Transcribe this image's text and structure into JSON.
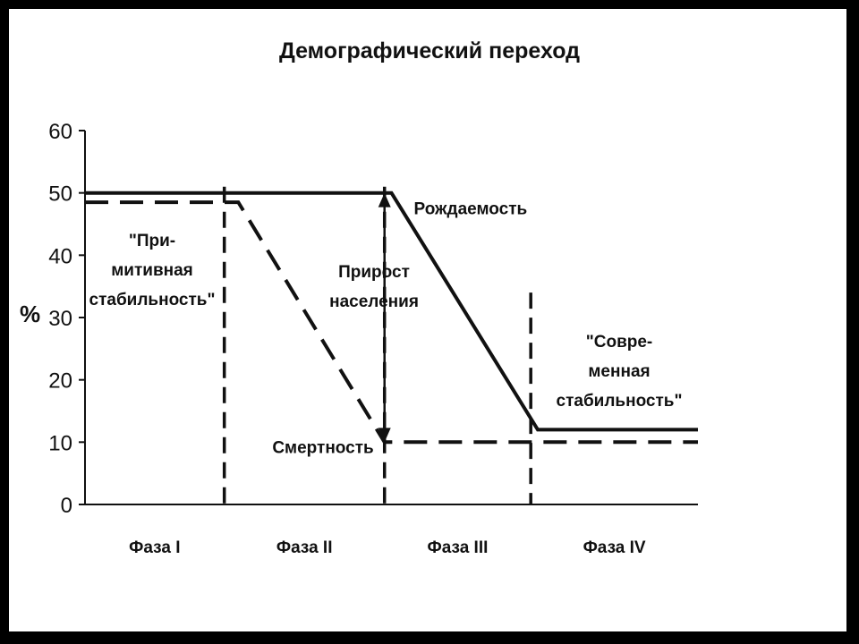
{
  "chart_data": {
    "type": "line",
    "title": "Демографический переход",
    "ylabel": "%",
    "xlabel": "",
    "ylim": [
      0,
      60
    ],
    "yticks": [
      "0",
      "10",
      "20",
      "30",
      "40",
      "50",
      "60"
    ],
    "xlim": [
      0,
      4.4
    ],
    "phases": [
      "Фаза I",
      "Фаза II",
      "Фаза III",
      "Фаза IV"
    ],
    "phase_boundaries": [
      1,
      2.15,
      3.2
    ],
    "series": [
      {
        "name": "Рождаемость",
        "style": "solid",
        "points": [
          [
            0,
            50
          ],
          [
            2.2,
            50
          ],
          [
            3.25,
            12
          ],
          [
            4.4,
            12
          ]
        ]
      },
      {
        "name": "Смертность",
        "style": "dashed",
        "points": [
          [
            0,
            48.5
          ],
          [
            1.1,
            48.5
          ],
          [
            2.15,
            10
          ],
          [
            4.4,
            10
          ]
        ]
      }
    ],
    "arrow": {
      "x": 2.15,
      "y_from": 10,
      "y_to": 50
    },
    "annotations": {
      "primitive": [
        "\"При-",
        "митивная",
        "стабильность\""
      ],
      "modern": [
        "\"Совре-",
        "менная",
        "стабильность\""
      ],
      "growth": [
        "Прирост",
        "населения"
      ]
    },
    "grid": false
  }
}
